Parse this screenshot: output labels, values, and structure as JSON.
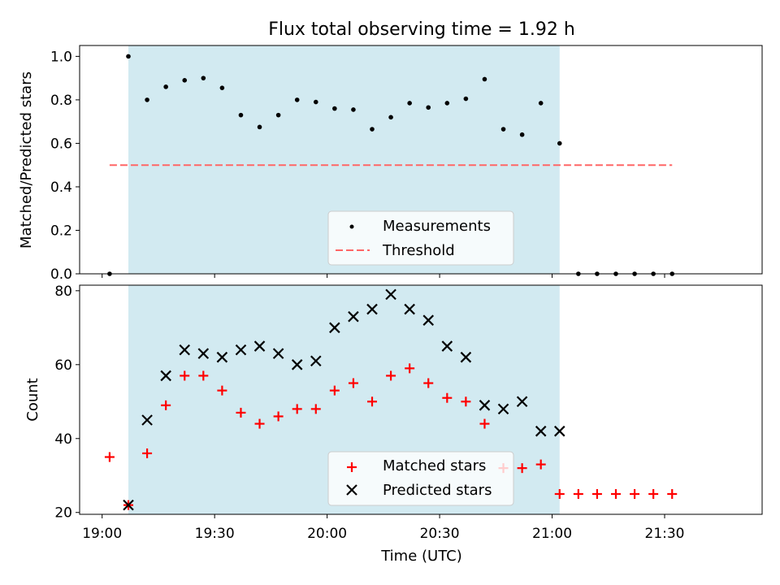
{
  "title": "Flux total observing time = 1.92 h",
  "xlabel": "Time (UTC)",
  "x_ticks": [
    "19:00",
    "19:30",
    "20:00",
    "20:30",
    "21:00",
    "21:30"
  ],
  "colors": {
    "shade": "#add8e6",
    "threshold": "#ff6666",
    "matched": "#ff0000",
    "predicted": "#000000",
    "measurement": "#000000"
  },
  "chart_data": [
    {
      "type": "scatter",
      "panel": "top",
      "ylabel": "Matched/Predicted stars",
      "ylim": [
        0,
        1.05
      ],
      "y_ticks": [
        "0.0",
        "0.2",
        "0.4",
        "0.6",
        "0.8",
        "1.0"
      ],
      "xlim": [
        "18:54",
        "21:56"
      ],
      "shaded_interval": [
        "19:07",
        "21:02"
      ],
      "legend_position": "lower-center",
      "series": [
        {
          "name": "Measurements",
          "marker": "dot",
          "x": [
            "19:02",
            "19:07",
            "19:12",
            "19:17",
            "19:22",
            "19:27",
            "19:32",
            "19:37",
            "19:42",
            "19:47",
            "19:52",
            "19:57",
            "20:02",
            "20:07",
            "20:12",
            "20:17",
            "20:22",
            "20:27",
            "20:32",
            "20:37",
            "20:42",
            "20:47",
            "20:52",
            "20:57",
            "21:02",
            "21:07",
            "21:12",
            "21:17",
            "21:22",
            "21:27",
            "21:32"
          ],
          "y": [
            0.0,
            1.0,
            0.8,
            0.86,
            0.89,
            0.9,
            0.855,
            0.73,
            0.675,
            0.73,
            0.8,
            0.79,
            0.76,
            0.755,
            0.665,
            0.72,
            0.785,
            0.765,
            0.785,
            0.805,
            0.895,
            0.665,
            0.64,
            0.785,
            0.6,
            0.0,
            0.0,
            0.0,
            0.0,
            0.0,
            0.0
          ]
        },
        {
          "name": "Threshold",
          "style": "dashed",
          "x": [
            "19:02",
            "21:32"
          ],
          "y": [
            0.5,
            0.5
          ]
        }
      ]
    },
    {
      "type": "scatter",
      "panel": "bottom",
      "ylabel": "Count",
      "ylim": [
        19.5,
        81.5
      ],
      "y_ticks": [
        "20",
        "40",
        "60",
        "80"
      ],
      "xlim": [
        "18:54",
        "21:56"
      ],
      "shaded_interval": [
        "19:07",
        "21:02"
      ],
      "legend_position": "lower-center",
      "series": [
        {
          "name": "Matched stars",
          "marker": "plus",
          "x": [
            "19:02",
            "19:07",
            "19:12",
            "19:17",
            "19:22",
            "19:27",
            "19:32",
            "19:37",
            "19:42",
            "19:47",
            "19:52",
            "19:57",
            "20:02",
            "20:07",
            "20:12",
            "20:17",
            "20:22",
            "20:27",
            "20:32",
            "20:37",
            "20:42",
            "20:47",
            "20:52",
            "20:57",
            "21:02",
            "21:07",
            "21:12",
            "21:17",
            "21:22",
            "21:27",
            "21:32"
          ],
          "y": [
            35,
            22,
            36,
            49,
            57,
            57,
            53,
            47,
            44,
            46,
            48,
            48,
            53,
            55,
            50,
            57,
            59,
            55,
            51,
            50,
            44,
            32,
            32,
            33,
            25,
            25,
            25,
            25,
            25,
            25,
            25
          ]
        },
        {
          "name": "Predicted stars",
          "marker": "x",
          "x": [
            "19:07",
            "19:12",
            "19:17",
            "19:22",
            "19:27",
            "19:32",
            "19:37",
            "19:42",
            "19:47",
            "19:52",
            "19:57",
            "20:02",
            "20:07",
            "20:12",
            "20:17",
            "20:22",
            "20:27",
            "20:32",
            "20:37",
            "20:42",
            "20:47",
            "20:52",
            "20:57",
            "21:02"
          ],
          "y": [
            22,
            45,
            57,
            64,
            63,
            62,
            64,
            65,
            63,
            60,
            61,
            70,
            73,
            75,
            79,
            75,
            72,
            65,
            62,
            49,
            48,
            50,
            42,
            42
          ]
        }
      ]
    }
  ]
}
